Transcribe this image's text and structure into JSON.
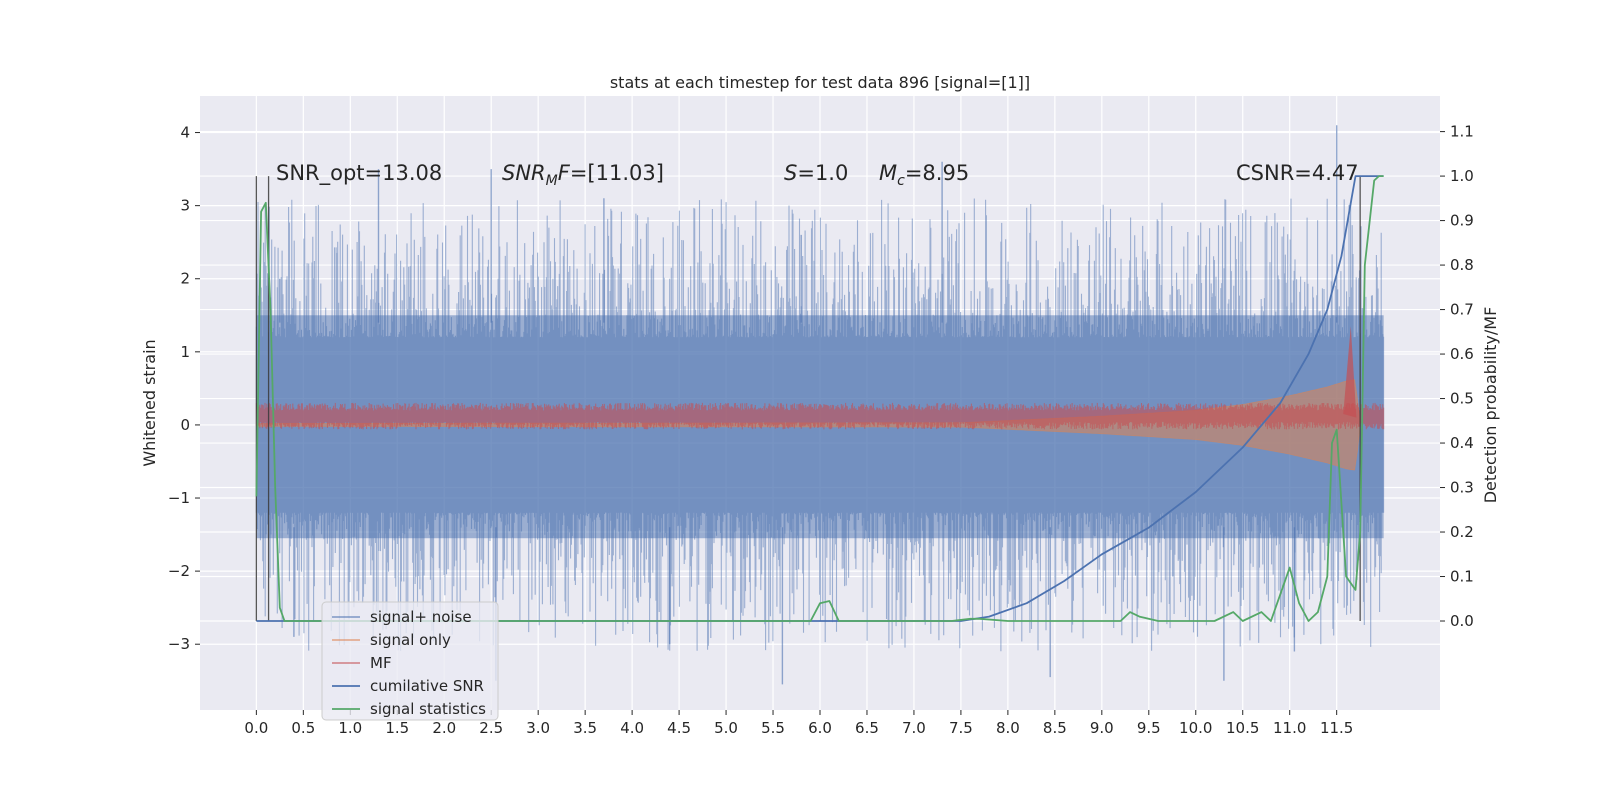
{
  "chart_data": {
    "type": "line",
    "title": "stats at each timestep for test data 896 [signal=[1]]",
    "xlabel": "",
    "ylabel": "Whitened strain",
    "ylabel_right": "Detection probability/MF",
    "xlim": [
      -0.6,
      12.6
    ],
    "ylim": [
      -3.9,
      4.5
    ],
    "ylim_right": [
      -0.2,
      1.18
    ],
    "x_ticks": [
      0.0,
      0.5,
      1.0,
      1.5,
      2.0,
      2.5,
      3.0,
      3.5,
      4.0,
      4.5,
      5.0,
      5.5,
      6.0,
      6.5,
      7.0,
      7.5,
      8.0,
      8.5,
      9.0,
      9.5,
      10.0,
      10.5,
      11.0,
      11.5
    ],
    "x_tick_labels": [
      "0.0",
      "0.5",
      "1.0",
      "1.5",
      "2.0",
      "2.5",
      "3.0",
      "3.5",
      "4.0",
      "4.5",
      "5.0",
      "5.5",
      "6.0",
      "6.5",
      "7.0",
      "7.5",
      "8.0",
      "8.5",
      "9.0",
      "9.5",
      "10.0",
      "10.5",
      "11.0",
      "11.5"
    ],
    "y_ticks": [
      -3,
      -2,
      -1,
      0,
      1,
      2,
      3,
      4
    ],
    "y_tick_labels": [
      "−3",
      "−2",
      "−1",
      "0",
      "1",
      "2",
      "3",
      "4"
    ],
    "y_right_ticks": [
      0.0,
      0.1,
      0.2,
      0.3,
      0.4,
      0.5,
      0.6,
      0.7,
      0.8,
      0.9,
      1.0,
      1.1
    ],
    "y_right_tick_labels": [
      "0.0",
      "0.1",
      "0.2",
      "0.3",
      "0.4",
      "0.5",
      "0.6",
      "0.7",
      "0.8",
      "0.9",
      "1.0",
      "1.1"
    ],
    "grid": true,
    "legend_position": "lower-left",
    "annotations": [
      {
        "text": "SNR_opt=13.08",
        "x": 0.2,
        "y": 3.3
      },
      {
        "text": "SNR_MF=[11.03]",
        "x": 2.6,
        "y": 3.3
      },
      {
        "text": "S=1.0",
        "x": 5.6,
        "y": 3.3
      },
      {
        "text": "M_c=8.95",
        "x": 6.6,
        "y": 3.3
      },
      {
        "text": "CSNR=4.47",
        "x": 10.4,
        "y": 3.3
      }
    ],
    "vertical_lines": [
      {
        "x": 0.0,
        "y_top": 1.0,
        "y_bottom": 0.0
      },
      {
        "x": 0.13,
        "y_top": 1.0,
        "y_bottom": 0.0
      },
      {
        "x": 11.75,
        "y_top": 1.0,
        "y_bottom": 0.0
      }
    ],
    "series": [
      {
        "name": "signal+ noise",
        "axis": "left",
        "color": "#4c72b0",
        "style": "dense-noise",
        "x_range": [
          0.0,
          12.0
        ],
        "band_upper": 1.5,
        "band_lower": -1.55,
        "extreme_peaks": [
          [
            0.25,
            2.0
          ],
          [
            1.3,
            3.5
          ],
          [
            2.5,
            3.5
          ],
          [
            3.7,
            3.1
          ],
          [
            5.8,
            2.6
          ],
          [
            7.3,
            3.6
          ],
          [
            11.5,
            4.1
          ]
        ],
        "extreme_troughs": [
          [
            0.4,
            -2.9
          ],
          [
            2.55,
            -3.5
          ],
          [
            4.4,
            -3.0
          ],
          [
            5.6,
            -3.55
          ],
          [
            8.45,
            -3.45
          ],
          [
            10.3,
            -3.5
          ],
          [
            11.05,
            -3.1
          ]
        ]
      },
      {
        "name": "signal only",
        "axis": "left",
        "color": "#dd8452",
        "style": "chirp",
        "x": [
          0.0,
          7.5,
          8.0,
          9.0,
          10.0,
          10.5,
          11.0,
          11.4,
          11.6,
          11.7,
          11.75
        ],
        "amplitude": [
          0.02,
          0.03,
          0.06,
          0.12,
          0.2,
          0.28,
          0.4,
          0.52,
          0.6,
          0.62,
          0.0
        ]
      },
      {
        "name": "MF",
        "axis": "left",
        "color": "#c44e52",
        "style": "noisy-band",
        "x_range": [
          0.0,
          12.0
        ],
        "center": 0.12,
        "spread": 0.13,
        "peak": [
          11.65,
          1.35
        ]
      },
      {
        "name": "cumilative SNR",
        "axis": "right",
        "color": "#4c72b0",
        "style": "line",
        "x": [
          0.0,
          7.5,
          7.8,
          8.2,
          8.6,
          9.0,
          9.5,
          10.0,
          10.5,
          10.9,
          11.2,
          11.4,
          11.55,
          11.65,
          11.7,
          11.75,
          12.0
        ],
        "y": [
          0.0,
          0.0,
          0.01,
          0.04,
          0.09,
          0.15,
          0.21,
          0.29,
          0.39,
          0.49,
          0.6,
          0.7,
          0.82,
          0.94,
          1.0,
          1.0,
          1.0
        ]
      },
      {
        "name": "signal statistics",
        "axis": "right",
        "color": "#55a868",
        "style": "line",
        "x": [
          0.0,
          0.05,
          0.1,
          0.15,
          0.2,
          0.25,
          0.3,
          5.9,
          6.0,
          6.1,
          6.2,
          6.3,
          7.4,
          7.6,
          7.7,
          8.0,
          9.2,
          9.3,
          9.4,
          9.6,
          10.2,
          10.4,
          10.5,
          10.7,
          10.8,
          10.9,
          11.0,
          11.1,
          11.2,
          11.3,
          11.4,
          11.45,
          11.5,
          11.6,
          11.7,
          11.75,
          11.8,
          11.9,
          11.95,
          12.0
        ],
        "y": [
          0.28,
          0.92,
          0.94,
          0.7,
          0.3,
          0.03,
          0.0,
          0.0,
          0.04,
          0.045,
          0.0,
          0.0,
          0.0,
          0.005,
          0.005,
          0.0,
          0.0,
          0.02,
          0.01,
          0.0,
          0.0,
          0.02,
          0.0,
          0.02,
          0.0,
          0.06,
          0.12,
          0.04,
          0.0,
          0.02,
          0.1,
          0.4,
          0.43,
          0.1,
          0.07,
          0.2,
          0.8,
          0.99,
          1.0,
          1.0
        ]
      }
    ]
  }
}
